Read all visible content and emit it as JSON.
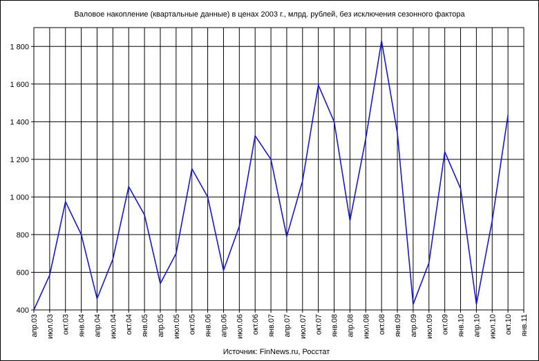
{
  "chart_data": {
    "type": "line",
    "title": "Валовое накопление (квартальные данные) в ценах 2003 г.,  млрд. рублей, без исключения сезонного фактора",
    "source": "Источник: FinNews.ru, Росстат",
    "categories": [
      "апр.03",
      "июл.03",
      "окт.03",
      "янв.04",
      "апр.04",
      "июл.04",
      "окт.04",
      "янв.05",
      "апр.05",
      "июл.05",
      "окт.05",
      "янв.06",
      "апр.06",
      "июл.06",
      "окт.06",
      "янв.07",
      "апр.07",
      "июл.07",
      "окт.07",
      "янв.08",
      "апр.08",
      "июл.08",
      "окт.08",
      "янв.09",
      "апр.09",
      "июл.09",
      "окт.09",
      "янв.10",
      "апр.10",
      "июл.10",
      "окт.10",
      "янв.11"
    ],
    "series": [
      {
        "name": "Валовое накопление",
        "color": "#1414e0",
        "values": [
          400,
          585,
          975,
          800,
          460,
          670,
          1055,
          905,
          540,
          700,
          1150,
          1000,
          610,
          845,
          1325,
          1200,
          790,
          1085,
          1595,
          1400,
          875,
          1310,
          1830,
          1340,
          430,
          650,
          1240,
          1045,
          430,
          875,
          1435,
          null
        ]
      }
    ],
    "ylim": [
      400,
      1900
    ],
    "yticks": [
      400,
      600,
      800,
      {
        "value": 1000,
        "label": "1 000"
      },
      {
        "value": 1200,
        "label": "1 200"
      },
      {
        "value": 1400,
        "label": "1 400"
      },
      {
        "value": 1600,
        "label": "1 600"
      },
      {
        "value": 1800,
        "label": "1 800"
      }
    ],
    "grid": true
  }
}
